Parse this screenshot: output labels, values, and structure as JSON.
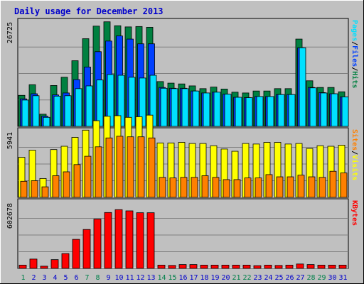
{
  "title": "Daily usage for December 2013",
  "colors": {
    "background": "#C0C0C0",
    "panel": "#C0C0C0",
    "title": "#0000CC",
    "hits": "#008040",
    "files": "#0040FF",
    "pages": "#00E0FF",
    "visits": "#FFFF00",
    "sites": "#FF8000",
    "kbytes": "#FF0000",
    "weekday_label": "#0000CC",
    "weekend_label": "#00804A"
  },
  "chart_data": {
    "type": "bar",
    "x": [
      "1",
      "2",
      "3",
      "4",
      "5",
      "6",
      "7",
      "8",
      "9",
      "10",
      "11",
      "12",
      "13",
      "14",
      "15",
      "16",
      "17",
      "18",
      "19",
      "20",
      "21",
      "22",
      "23",
      "24",
      "25",
      "26",
      "27",
      "28",
      "29",
      "30",
      "31"
    ],
    "weekend_days": [
      "1",
      "7",
      "8",
      "14",
      "15",
      "21",
      "22",
      "28",
      "29"
    ],
    "panels": [
      {
        "name": "hits_files_pages",
        "ymax_label": "26725",
        "ymax": 26725,
        "legend": [
          {
            "text": "Pages",
            "color": "#00E0FF"
          },
          {
            "text": "Files",
            "color": "#0040FF"
          },
          {
            "text": "Hits",
            "color": "#008040"
          }
        ],
        "series": [
          {
            "name": "Hits",
            "color": "#008040",
            "values": [
              7900,
              10600,
              3100,
              10400,
              12500,
              16700,
              22300,
              25500,
              26600,
              25600,
              25300,
              25400,
              25200,
              11400,
              11000,
              10800,
              10300,
              9600,
              10000,
              9500,
              8700,
              8500,
              9000,
              9000,
              9600,
              9600,
              22200,
              11600,
              9900,
              9900,
              8800
            ]
          },
          {
            "name": "Files",
            "color": "#0040FF",
            "values": [
              7000,
              8300,
              2600,
              8000,
              8500,
              11900,
              15100,
              19000,
              21700,
              23000,
              22200,
              21000,
              21000,
              9900,
              9700,
              9700,
              9000,
              8500,
              8700,
              8200,
              7400,
              7300,
              7600,
              7600,
              8100,
              8100,
              20000,
              9900,
              8600,
              8300,
              7500
            ]
          },
          {
            "name": "Pages",
            "color": "#00E0FF",
            "values": [
              6700,
              7800,
              2300,
              7700,
              7800,
              9600,
              10300,
              11800,
              13200,
              13000,
              12500,
              12300,
              13000,
              9700,
              9600,
              9600,
              9000,
              8500,
              8700,
              8200,
              7400,
              7300,
              7600,
              7600,
              8100,
              8100,
              20000,
              9800,
              8500,
              8300,
              7500
            ]
          }
        ]
      },
      {
        "name": "visits_sites",
        "ymax_label": "5941",
        "ymax": 5941,
        "legend": [
          {
            "text": "Sites",
            "color": "#FF8000"
          },
          {
            "text": "Visits",
            "color": "#FFFF00"
          }
        ],
        "series": [
          {
            "name": "Visits",
            "color": "#FFFF00",
            "values": [
              3600,
              4250,
              1700,
              4300,
              4600,
              5400,
              6050,
              6900,
              7300,
              7350,
              7200,
              7250,
              7400,
              4900,
              4900,
              4950,
              4850,
              4850,
              4650,
              4350,
              4150,
              4850,
              4800,
              4950,
              4950,
              4800,
              4850,
              4400,
              4650,
              4600,
              4700
            ]
          },
          {
            "name": "Sites",
            "color": "#FF8000",
            "values": [
              1450,
              1500,
              950,
              1950,
              2300,
              2950,
              3700,
              4550,
              5350,
              5500,
              5450,
              5450,
              5350,
              1800,
              1750,
              1800,
              1800,
              1950,
              1800,
              1600,
              1600,
              1750,
              1750,
              2050,
              1850,
              1850,
              2000,
              1850,
              1800,
              2350,
              2200
            ]
          }
        ]
      },
      {
        "name": "kbytes",
        "ymax_label": "602678",
        "ymax": 602678,
        "legend": [
          {
            "text": "KBytes",
            "color": "#FF0000"
          }
        ],
        "series": [
          {
            "name": "KBytes",
            "color": "#FF0000",
            "values": [
              30000,
              85000,
              20000,
              80000,
              135000,
              265000,
              355000,
              450000,
              510000,
              536000,
              525000,
              508000,
              508000,
              30000,
              27000,
              35000,
              35000,
              30000,
              30000,
              30000,
              30000,
              30000,
              25000,
              30000,
              27000,
              30000,
              40000,
              35000,
              30000,
              30000,
              30000
            ]
          }
        ]
      }
    ]
  }
}
